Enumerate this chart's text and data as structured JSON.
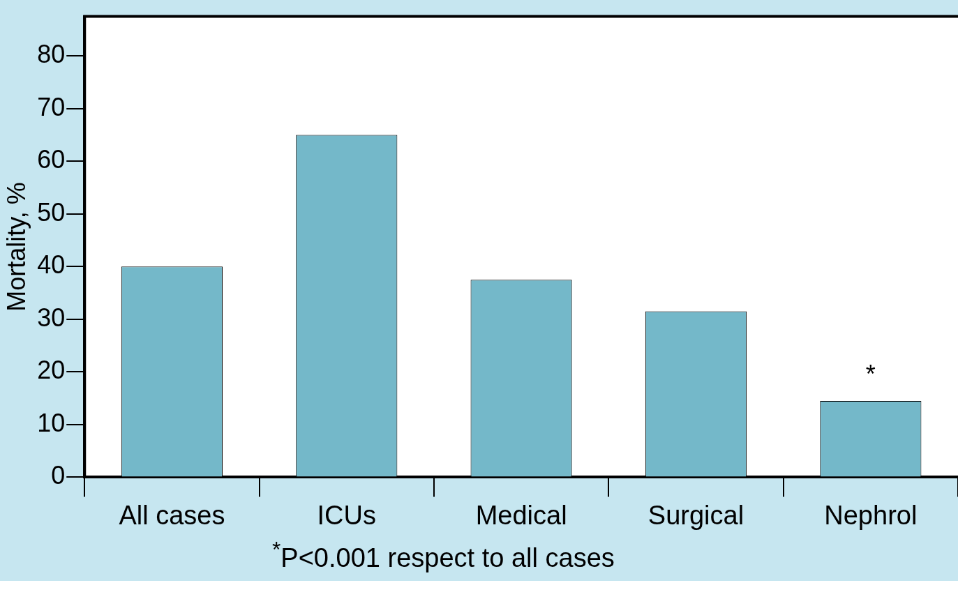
{
  "chart_data": {
    "type": "bar",
    "ylabel": "Mortality, %",
    "categories": [
      "All cases",
      "ICUs",
      "Medical",
      "Surgical",
      "Nephrol"
    ],
    "values": [
      40,
      65,
      37.5,
      31.5,
      14.5
    ],
    "color": "#74b8c9",
    "ylim": [
      0,
      87.5
    ],
    "yticks": [
      0,
      10,
      20,
      30,
      40,
      50,
      60,
      70,
      80
    ],
    "grid": false,
    "legend": false,
    "annotations": [
      {
        "text": "*",
        "x": "Nephrol",
        "y": 14.5
      },
      "$^{*}$P<0.001 respect to all cases"
    ]
  }
}
